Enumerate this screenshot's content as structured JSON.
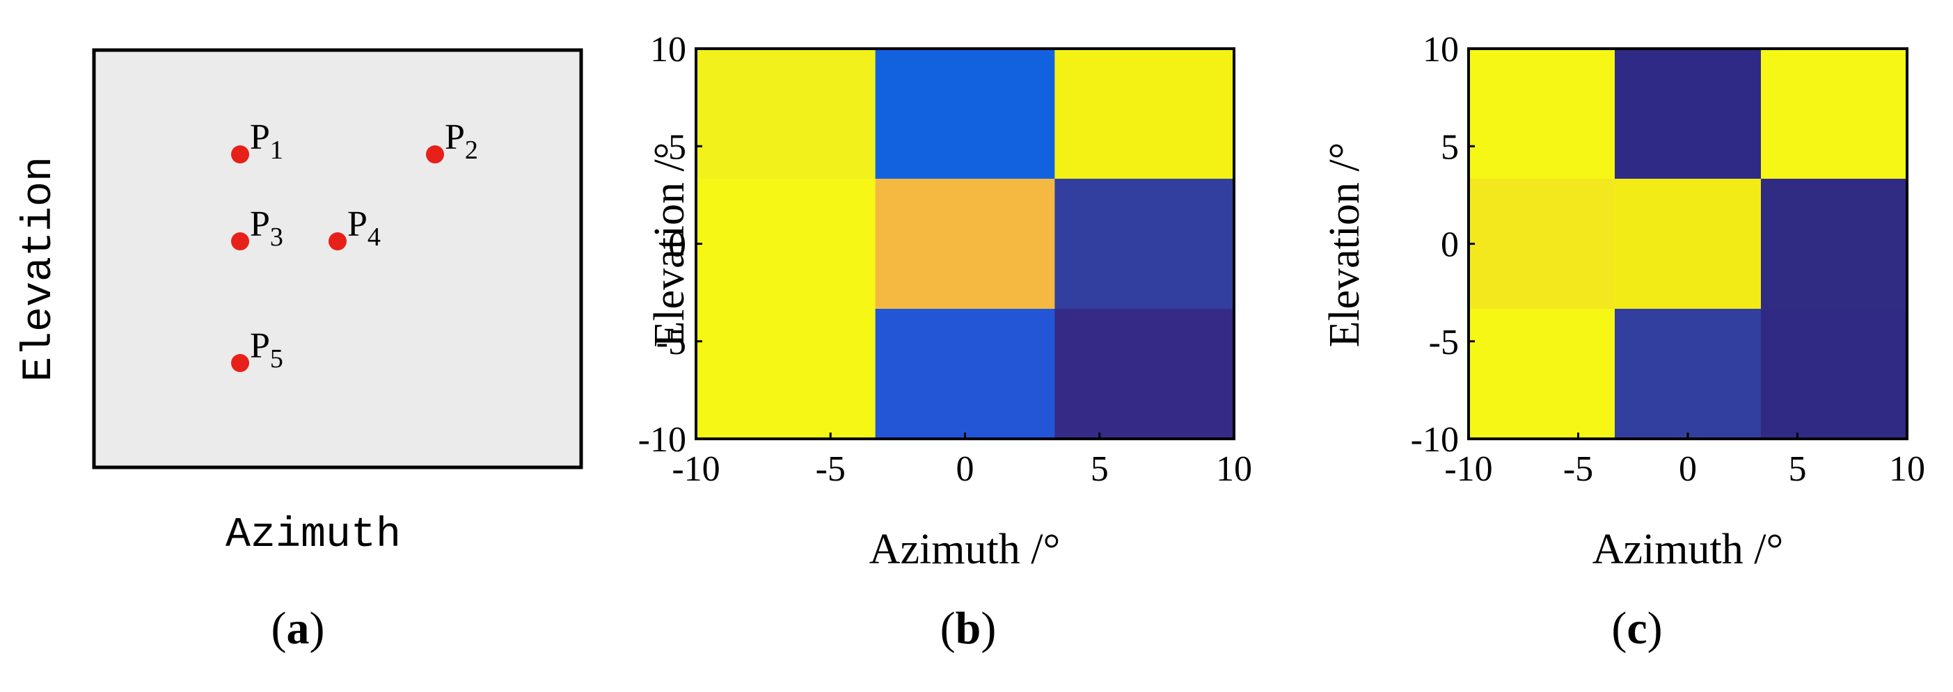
{
  "chart_data": [
    {
      "panel": "(a)",
      "type": "scatter",
      "xlabel": "Azimuth",
      "ylabel": "Elevation",
      "marker_color": "#e8201a",
      "background": "#ebebeb",
      "points": [
        {
          "name": "P",
          "sub": "1",
          "x": -1,
          "y": 1
        },
        {
          "name": "P",
          "sub": "2",
          "x": 1,
          "y": 1
        },
        {
          "name": "P",
          "sub": "3",
          "x": -1,
          "y": 0
        },
        {
          "name": "P",
          "sub": "4",
          "x": 0,
          "y": 0
        },
        {
          "name": "P",
          "sub": "5",
          "x": -1,
          "y": -1.4
        }
      ],
      "xlim": [
        -2.5,
        2.5
      ],
      "ylim": [
        -2.6,
        2.2
      ]
    },
    {
      "panel": "(b)",
      "type": "heatmap",
      "xlabel": "Azimuth /°",
      "ylabel": "Elevation /°",
      "xticks": [
        "-10",
        "-5",
        "0",
        "5",
        "10"
      ],
      "yticks": [
        "10",
        "5",
        "0",
        "-5",
        "-10"
      ],
      "xlim": [
        -10,
        10
      ],
      "ylim": [
        -10,
        10
      ],
      "grid_rows_top_to_bottom": [
        [
          "#f2f11b",
          "#1262e0",
          "#f4f215"
        ],
        [
          "#f6f714",
          "#f5b942",
          "#333f9e"
        ],
        [
          "#f6f714",
          "#2356d7",
          "#352a86"
        ]
      ]
    },
    {
      "panel": "(c)",
      "type": "heatmap",
      "xlabel": "Azimuth /°",
      "ylabel": "Elevation /°",
      "xticks": [
        "-10",
        "-5",
        "0",
        "5",
        "10"
      ],
      "yticks": [
        "10",
        "5",
        "0",
        "-5",
        "-10"
      ],
      "xlim": [
        -10,
        10
      ],
      "ylim": [
        -10,
        10
      ],
      "grid_rows_top_to_bottom": [
        [
          "#f6f714",
          "#302a87",
          "#f6f714"
        ],
        [
          "#f3e81e",
          "#f2eb15",
          "#302c84"
        ],
        [
          "#f6f714",
          "#323f9e",
          "#302a84"
        ]
      ]
    }
  ],
  "panel_labels": {
    "a": "(a)",
    "b": "(b)",
    "c": "(c)"
  }
}
